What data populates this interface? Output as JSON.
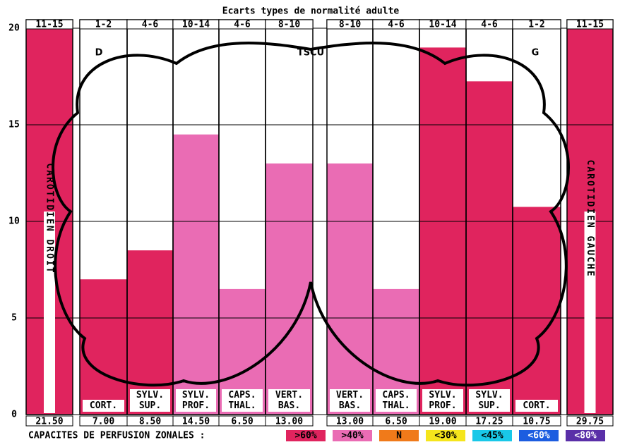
{
  "chart_data": {
    "type": "bar",
    "title": "Ecarts types de normalité adulte",
    "annotations": [
      "D",
      "TSCU",
      "G"
    ],
    "categories": [
      "CAROTIDIEN DROIT",
      "CORT.",
      "SYLV. SUP.",
      "SYLV. PROF.",
      "CAPS. THAL.",
      "VERT. BAS.",
      "VERT. BAS.",
      "CAPS. THAL.",
      "SYLV. PROF.",
      "SYLV. SUP.",
      "CORT.",
      "CAROTIDIEN GAUCHE"
    ],
    "ranges": [
      "11-15",
      "1-2",
      "4-6",
      "10-14",
      "4-6",
      "8-10",
      "8-10",
      "4-6",
      "10-14",
      "4-6",
      "1-2",
      "11-15"
    ],
    "values": [
      21.5,
      7,
      8.5,
      14.5,
      6.5,
      13,
      13,
      6.5,
      19,
      17.25,
      10.75,
      29.75
    ],
    "value_labels": [
      "21.50",
      "7.00",
      "8.50",
      "14.50",
      "6.50",
      "13.00",
      "13.00",
      "6.50",
      "19.00",
      "17.25",
      "10.75",
      "29.75"
    ],
    "colors": [
      "#e0245e",
      "#e0245e",
      "#e0245e",
      "#ea6cb4",
      "#ea6cb4",
      "#ea6cb4",
      "#ea6cb4",
      "#ea6cb4",
      "#e0245e",
      "#e0245e",
      "#e0245e",
      "#e0245e"
    ],
    "ylim": [
      0,
      20
    ],
    "yticks": [
      0,
      5,
      10,
      15,
      20
    ],
    "grid": true,
    "legend": {
      "title": "CAPACITES DE PERFUSION ZONALES :",
      "items": [
        {
          "label": ">60%",
          "color": "#e0245e"
        },
        {
          "label": ">40%",
          "color": "#ea6cb4"
        },
        {
          "label": "N",
          "color": "#f07a1a"
        },
        {
          "label": "<30%",
          "color": "#f5e51c"
        },
        {
          "label": "<45%",
          "color": "#19c8e8"
        },
        {
          "label": "<60%",
          "color": "#1c5de0"
        },
        {
          "label": "<80%",
          "color": "#5a2fa8"
        }
      ]
    }
  }
}
